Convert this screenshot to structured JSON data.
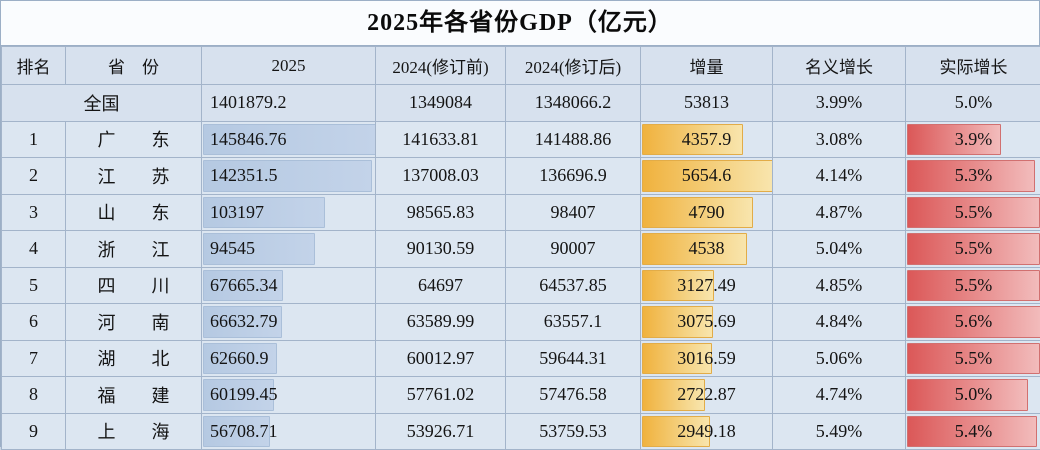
{
  "chart_data": {
    "type": "table",
    "title": "2025年各省份GDP（亿元）",
    "unit": "亿元",
    "columns": [
      "排名",
      "省　份",
      "2025",
      "2024(修订前)",
      "2024(修订后)",
      "增量",
      "名义增长",
      "实际增长"
    ],
    "data_bars": {
      "2025": "blue",
      "增量": "gold",
      "实际增长": "red"
    },
    "colors": {
      "bar_blue": "#b5c9e2",
      "bar_gold": "#f0b23e",
      "bar_red": "#db5858",
      "cell_bg": "#dce6f1",
      "header_bg": "#d7e1ee",
      "title_bg": "#fafcfe",
      "border": "#a3b4ca"
    },
    "rows": [
      {
        "rank": "",
        "province": "全国",
        "gdp_2025": 1401879.2,
        "gdp_2024_pre": 1349084,
        "gdp_2024_post": 1348066.2,
        "increment": 53813,
        "nominal_growth": "3.99%",
        "real_growth": "5.0%"
      },
      {
        "rank": "1",
        "province": "广东",
        "gdp_2025": 145846.76,
        "gdp_2024_pre": 141633.81,
        "gdp_2024_post": 141488.86,
        "increment": 4357.9,
        "nominal_growth": "3.08%",
        "real_growth": "3.9%"
      },
      {
        "rank": "2",
        "province": "江苏",
        "gdp_2025": 142351.5,
        "gdp_2024_pre": 137008.03,
        "gdp_2024_post": 136696.9,
        "increment": 5654.6,
        "nominal_growth": "4.14%",
        "real_growth": "5.3%"
      },
      {
        "rank": "3",
        "province": "山东",
        "gdp_2025": 103197,
        "gdp_2024_pre": 98565.83,
        "gdp_2024_post": 98407,
        "increment": 4790,
        "nominal_growth": "4.87%",
        "real_growth": "5.5%"
      },
      {
        "rank": "4",
        "province": "浙江",
        "gdp_2025": 94545,
        "gdp_2024_pre": 90130.59,
        "gdp_2024_post": 90007,
        "increment": 4538,
        "nominal_growth": "5.04%",
        "real_growth": "5.5%"
      },
      {
        "rank": "5",
        "province": "四川",
        "gdp_2025": 67665.34,
        "gdp_2024_pre": 64697,
        "gdp_2024_post": 64537.85,
        "increment": 3127.49,
        "nominal_growth": "4.85%",
        "real_growth": "5.5%"
      },
      {
        "rank": "6",
        "province": "河南",
        "gdp_2025": 66632.79,
        "gdp_2024_pre": 63589.99,
        "gdp_2024_post": 63557.1,
        "increment": 3075.69,
        "nominal_growth": "4.84%",
        "real_growth": "5.6%"
      },
      {
        "rank": "7",
        "province": "湖北",
        "gdp_2025": 62660.9,
        "gdp_2024_pre": 60012.97,
        "gdp_2024_post": 59644.31,
        "increment": 3016.59,
        "nominal_growth": "5.06%",
        "real_growth": "5.5%"
      },
      {
        "rank": "8",
        "province": "福建",
        "gdp_2025": 60199.45,
        "gdp_2024_pre": 57761.02,
        "gdp_2024_post": 57476.58,
        "increment": 2722.87,
        "nominal_growth": "4.74%",
        "real_growth": "5.0%"
      },
      {
        "rank": "9",
        "province": "上海",
        "gdp_2025": 56708.71,
        "gdp_2024_pre": 53926.71,
        "gdp_2024_post": 53759.53,
        "increment": 2949.18,
        "nominal_growth": "5.49%",
        "real_growth": "5.4%"
      }
    ]
  }
}
